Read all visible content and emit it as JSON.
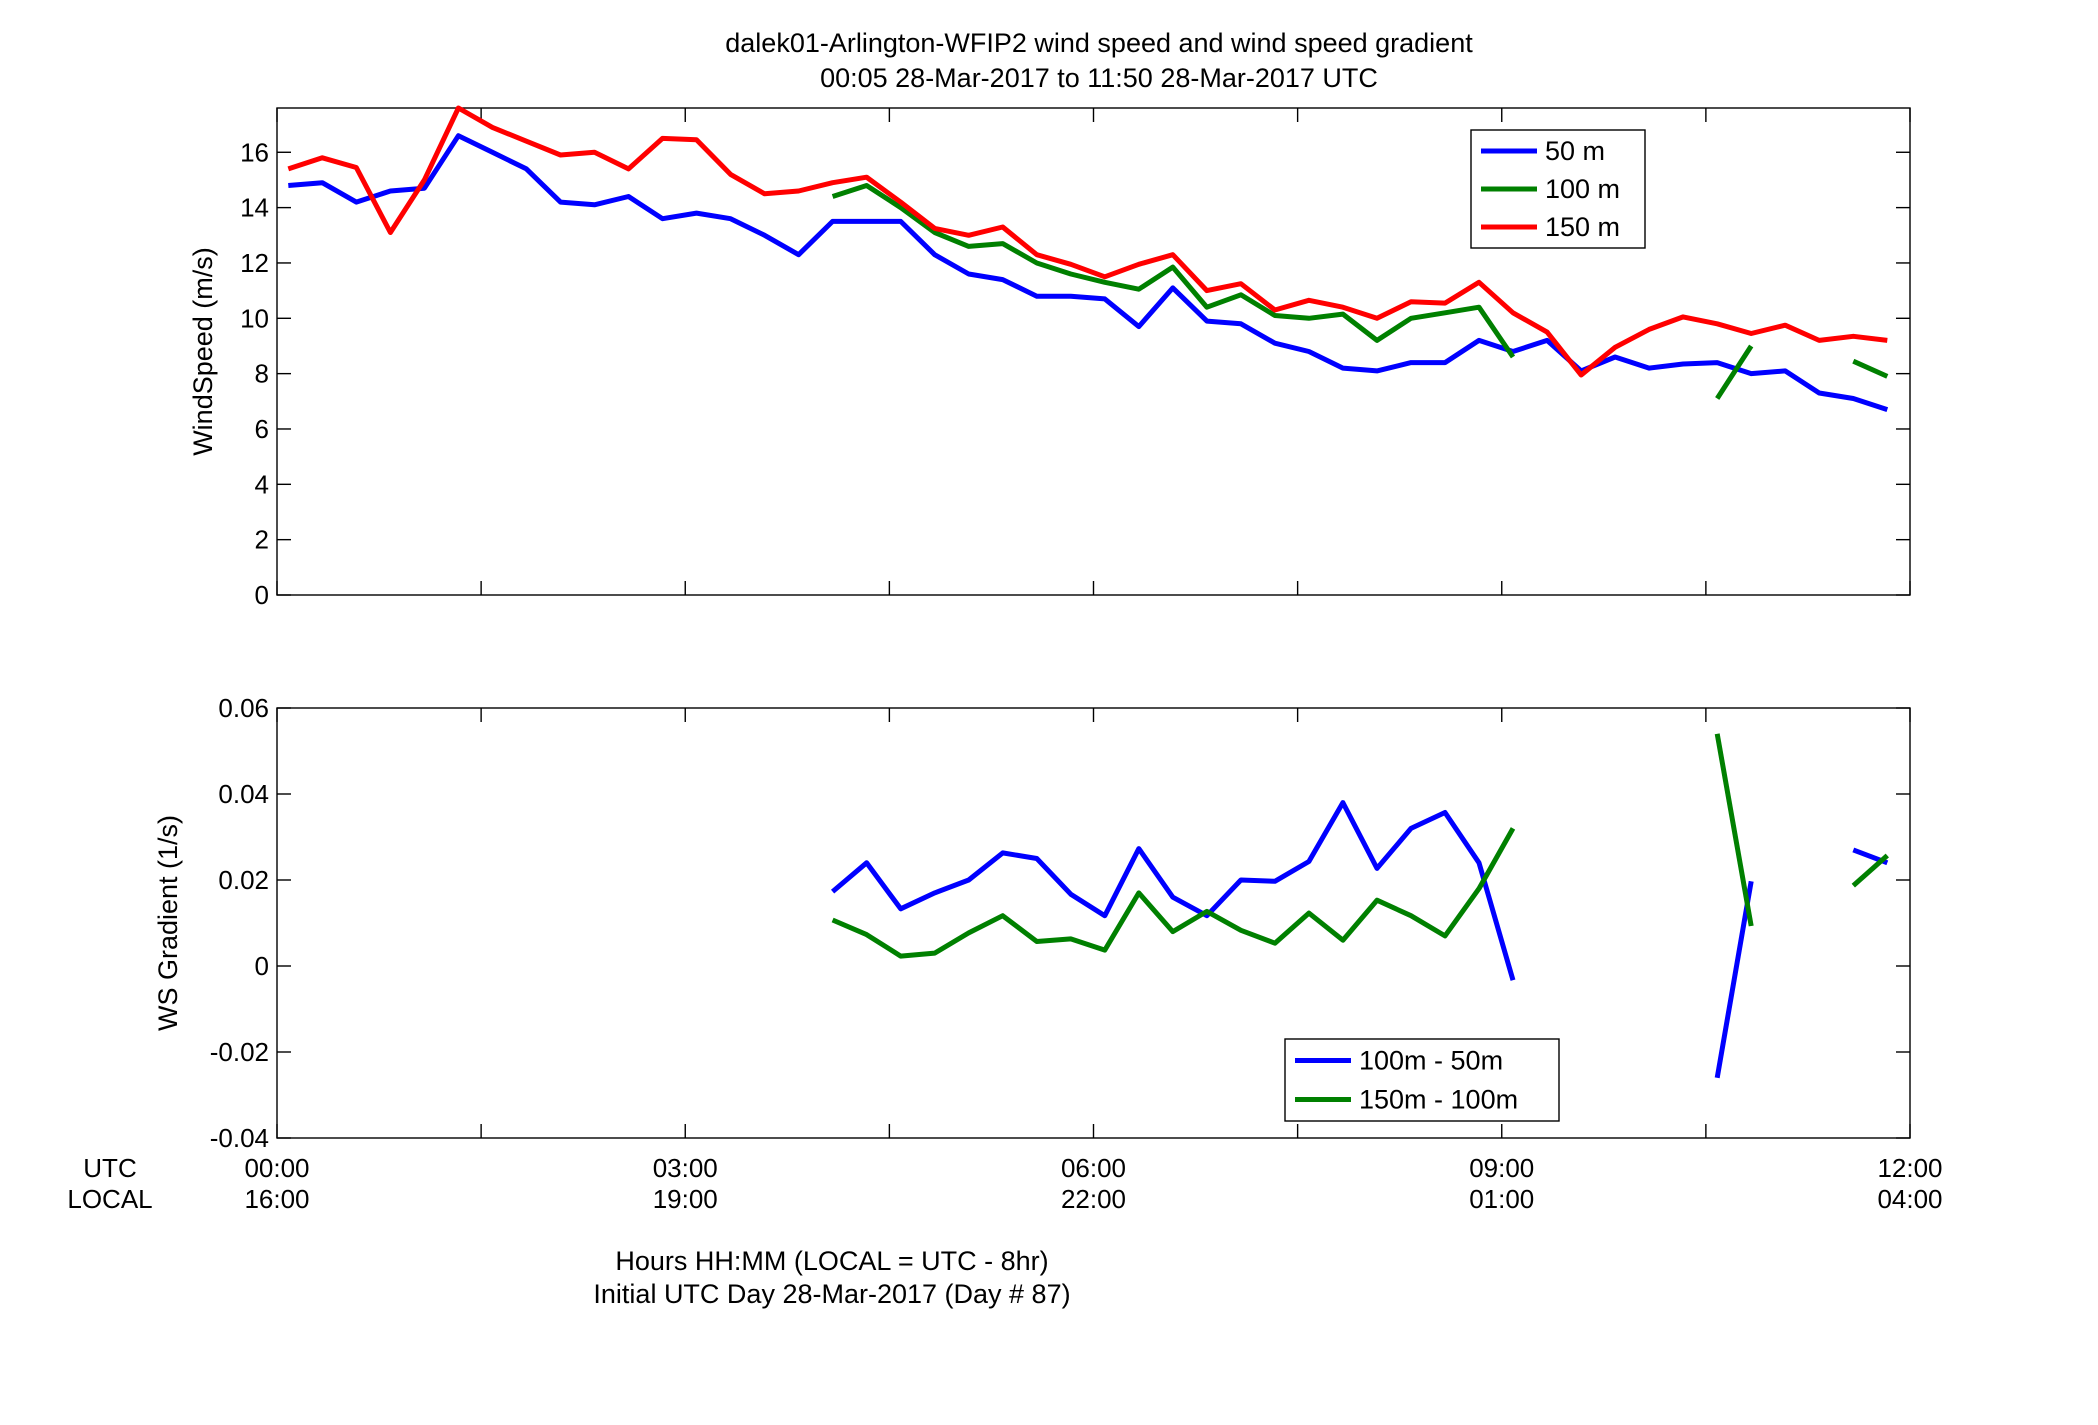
{
  "figure": {
    "title_line1": "dalek01-Arlington-WFIP2  wind speed and wind speed gradient",
    "title_line2": "00:05 28-Mar-2017 to 11:50 28-Mar-2017  UTC",
    "xlabel_line1": "Hours HH:MM  (LOCAL = UTC - 8hr)",
    "xlabel_line2": "Initial UTC Day 28-Mar-2017 (Day # 87)",
    "row_label_utc": "UTC",
    "row_label_local": "LOCAL",
    "x_ticks_utc": [
      "00:00",
      "03:00",
      "06:00",
      "09:00",
      "12:00"
    ],
    "x_ticks_local": [
      "16:00",
      "19:00",
      "22:00",
      "01:00",
      "04:00"
    ]
  },
  "chart_data": [
    {
      "type": "line",
      "ylabel": "WindSpeed (m/s)",
      "xlim": [
        0,
        12
      ],
      "ylim": [
        0,
        17.6
      ],
      "yticks": [
        0,
        2,
        4,
        6,
        8,
        10,
        12,
        14,
        16
      ],
      "ytick_labels": [
        "0",
        "2",
        "4",
        "6",
        "8",
        "10",
        "12",
        "14",
        "16"
      ],
      "x_unit": "hours UTC",
      "legend_position": "top-right",
      "series": [
        {
          "name": "50 m",
          "color": "#0000ff",
          "segments": [
            [
              [
                0.083,
                14.8
              ],
              [
                0.333,
                14.9
              ],
              [
                0.583,
                14.2
              ],
              [
                0.833,
                14.6
              ],
              [
                1.083,
                14.7
              ],
              [
                1.333,
                16.6
              ],
              [
                1.583,
                16.0
              ],
              [
                1.833,
                15.4
              ],
              [
                2.083,
                14.2
              ],
              [
                2.333,
                14.1
              ],
              [
                2.583,
                14.4
              ],
              [
                2.833,
                13.6
              ],
              [
                3.083,
                13.8
              ],
              [
                3.333,
                13.6
              ],
              [
                3.583,
                13.0
              ],
              [
                3.833,
                12.3
              ],
              [
                4.083,
                13.5
              ],
              [
                4.333,
                13.5
              ],
              [
                4.583,
                13.5
              ],
              [
                4.833,
                12.3
              ],
              [
                5.083,
                11.6
              ],
              [
                5.333,
                11.4
              ],
              [
                5.583,
                10.8
              ],
              [
                5.833,
                10.8
              ],
              [
                6.083,
                10.7
              ],
              [
                6.333,
                9.7
              ],
              [
                6.583,
                11.1
              ],
              [
                6.833,
                9.9
              ],
              [
                7.083,
                9.8
              ],
              [
                7.333,
                9.1
              ],
              [
                7.583,
                8.8
              ],
              [
                7.833,
                8.2
              ],
              [
                8.083,
                8.1
              ],
              [
                8.333,
                8.4
              ],
              [
                8.583,
                8.4
              ],
              [
                8.833,
                9.2
              ],
              [
                9.083,
                8.8
              ],
              [
                9.333,
                9.2
              ],
              [
                9.583,
                8.1
              ],
              [
                9.833,
                8.6
              ],
              [
                10.083,
                8.2
              ],
              [
                10.333,
                8.35
              ],
              [
                10.583,
                8.4
              ],
              [
                10.833,
                8.0
              ],
              [
                11.083,
                8.1
              ],
              [
                11.333,
                7.3
              ],
              [
                11.583,
                7.1
              ],
              [
                11.833,
                6.7
              ]
            ]
          ]
        },
        {
          "name": "100 m",
          "color": "#008000",
          "segments": [
            [
              [
                4.083,
                14.4
              ],
              [
                4.333,
                14.8
              ],
              [
                4.583,
                14.0
              ],
              [
                4.833,
                13.1
              ],
              [
                5.083,
                12.6
              ],
              [
                5.333,
                12.7
              ],
              [
                5.583,
                12.0
              ],
              [
                5.833,
                11.6
              ],
              [
                6.083,
                11.3
              ],
              [
                6.333,
                11.05
              ],
              [
                6.583,
                11.85
              ],
              [
                6.833,
                10.4
              ],
              [
                7.083,
                10.85
              ],
              [
                7.333,
                10.1
              ],
              [
                7.583,
                10.0
              ],
              [
                7.833,
                10.15
              ],
              [
                8.083,
                9.2
              ],
              [
                8.333,
                10.0
              ],
              [
                8.583,
                10.2
              ],
              [
                8.833,
                10.4
              ],
              [
                9.083,
                8.6
              ]
            ],
            [
              [
                10.583,
                7.1
              ],
              [
                10.833,
                9.0
              ]
            ],
            [
              [
                11.583,
                8.45
              ],
              [
                11.833,
                7.9
              ]
            ]
          ]
        },
        {
          "name": "150 m",
          "color": "#ff0000",
          "segments": [
            [
              [
                0.083,
                15.4
              ],
              [
                0.333,
                15.8
              ],
              [
                0.583,
                15.45
              ],
              [
                0.833,
                13.1
              ],
              [
                1.083,
                15.0
              ],
              [
                1.333,
                17.6
              ],
              [
                1.583,
                16.9
              ],
              [
                1.833,
                16.4
              ],
              [
                2.083,
                15.9
              ],
              [
                2.333,
                16.0
              ],
              [
                2.583,
                15.4
              ],
              [
                2.833,
                16.5
              ],
              [
                3.083,
                16.45
              ],
              [
                3.333,
                15.2
              ],
              [
                3.583,
                14.5
              ],
              [
                3.833,
                14.6
              ],
              [
                4.083,
                14.9
              ],
              [
                4.333,
                15.1
              ],
              [
                4.583,
                14.2
              ],
              [
                4.833,
                13.25
              ],
              [
                5.083,
                13.0
              ],
              [
                5.333,
                13.3
              ],
              [
                5.583,
                12.3
              ],
              [
                5.833,
                11.95
              ],
              [
                6.083,
                11.5
              ],
              [
                6.333,
                11.95
              ],
              [
                6.583,
                12.3
              ],
              [
                6.833,
                11.0
              ],
              [
                7.083,
                11.25
              ],
              [
                7.333,
                10.3
              ],
              [
                7.583,
                10.65
              ],
              [
                7.833,
                10.4
              ],
              [
                8.083,
                10.0
              ],
              [
                8.333,
                10.6
              ],
              [
                8.583,
                10.55
              ],
              [
                8.833,
                11.3
              ],
              [
                9.083,
                10.2
              ],
              [
                9.333,
                9.5
              ],
              [
                9.583,
                7.95
              ],
              [
                9.833,
                8.95
              ],
              [
                10.083,
                9.6
              ],
              [
                10.333,
                10.05
              ],
              [
                10.583,
                9.8
              ],
              [
                10.833,
                9.45
              ],
              [
                11.083,
                9.75
              ],
              [
                11.333,
                9.2
              ],
              [
                11.583,
                9.35
              ],
              [
                11.833,
                9.2
              ]
            ]
          ]
        }
      ]
    },
    {
      "type": "line",
      "ylabel": "WS Gradient (1/s)",
      "xlim": [
        0,
        12
      ],
      "ylim": [
        -0.04,
        0.06
      ],
      "yticks": [
        -0.04,
        -0.02,
        0,
        0.02,
        0.04,
        0.06
      ],
      "ytick_labels": [
        "-0.04",
        "-0.02",
        "0",
        "0.02",
        "0.04",
        "0.06"
      ],
      "x_unit": "hours UTC",
      "legend_position": "bottom-center",
      "series": [
        {
          "name": "100m - 50m",
          "color": "#0000ff",
          "segments": [
            [
              [
                4.083,
                0.0173
              ],
              [
                4.333,
                0.024
              ],
              [
                4.583,
                0.0133
              ],
              [
                4.833,
                0.017
              ],
              [
                5.083,
                0.02
              ],
              [
                5.333,
                0.0263
              ],
              [
                5.583,
                0.025
              ],
              [
                5.833,
                0.0167
              ],
              [
                6.083,
                0.0117
              ],
              [
                6.333,
                0.0273
              ],
              [
                6.583,
                0.016
              ],
              [
                6.833,
                0.0117
              ],
              [
                7.083,
                0.02
              ],
              [
                7.333,
                0.0197
              ],
              [
                7.583,
                0.0243
              ],
              [
                7.833,
                0.038
              ],
              [
                8.083,
                0.0227
              ],
              [
                8.333,
                0.032
              ],
              [
                8.583,
                0.0357
              ],
              [
                8.833,
                0.024
              ],
              [
                9.083,
                -0.0033
              ]
            ],
            [
              [
                10.583,
                -0.026
              ],
              [
                10.833,
                0.0197
              ]
            ],
            [
              [
                11.583,
                0.027
              ],
              [
                11.833,
                0.024
              ]
            ]
          ]
        },
        {
          "name": "150m - 100m",
          "color": "#008000",
          "segments": [
            [
              [
                4.083,
                0.0107
              ],
              [
                4.333,
                0.0073
              ],
              [
                4.583,
                0.0023
              ],
              [
                4.833,
                0.003
              ],
              [
                5.083,
                0.0077
              ],
              [
                5.333,
                0.0117
              ],
              [
                5.583,
                0.0057
              ],
              [
                5.833,
                0.0063
              ],
              [
                6.083,
                0.0037
              ],
              [
                6.333,
                0.017
              ],
              [
                6.583,
                0.008
              ],
              [
                6.833,
                0.0127
              ],
              [
                7.083,
                0.0083
              ],
              [
                7.333,
                0.0053
              ],
              [
                7.583,
                0.0123
              ],
              [
                7.833,
                0.006
              ],
              [
                8.083,
                0.0153
              ],
              [
                8.333,
                0.0117
              ],
              [
                8.583,
                0.007
              ],
              [
                8.833,
                0.018
              ],
              [
                9.083,
                0.032
              ]
            ],
            [
              [
                10.583,
                0.054
              ],
              [
                10.833,
                0.0093
              ]
            ],
            [
              [
                11.583,
                0.0187
              ],
              [
                11.833,
                0.0257
              ]
            ]
          ]
        }
      ]
    }
  ]
}
